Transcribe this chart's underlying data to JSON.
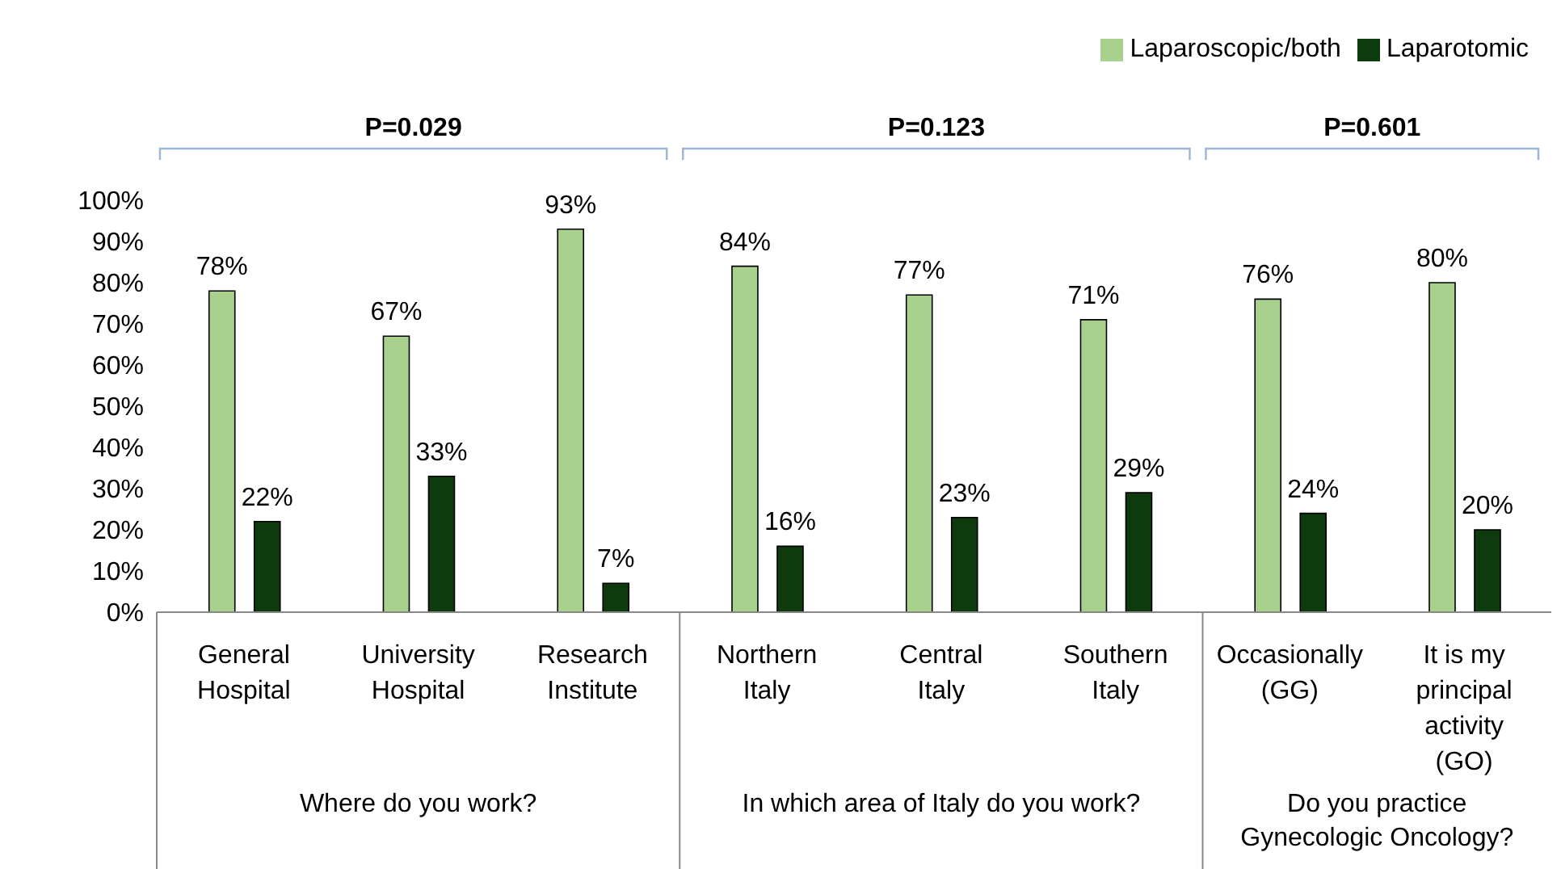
{
  "chart_data": {
    "type": "bar",
    "categories": [
      "General Hospital",
      "University Hospital",
      "Research Institute",
      "Northern Italy",
      "Central Italy",
      "Southern Italy",
      "Occasionally (GG)",
      "It is my principal activity (GO)"
    ],
    "series": [
      {
        "name": "Laparoscopic/both",
        "color": "#a9d18e",
        "values": [
          78,
          67,
          93,
          84,
          77,
          71,
          76,
          80
        ],
        "value_labels": [
          "78%",
          "67%",
          "93%",
          "84%",
          "77%",
          "71%",
          "76%",
          "80%"
        ]
      },
      {
        "name": "Laparotomic",
        "color": "#0d3b0d",
        "values": [
          22,
          33,
          7,
          16,
          23,
          29,
          24,
          20
        ],
        "value_labels": [
          "22%",
          "33%",
          "7%",
          "16%",
          "23%",
          "29%",
          "24%",
          "20%"
        ]
      }
    ],
    "ylim": [
      0,
      100
    ],
    "yticks": [
      {
        "value": 0,
        "label": "0%"
      },
      {
        "value": 10,
        "label": "10%"
      },
      {
        "value": 20,
        "label": "20%"
      },
      {
        "value": 30,
        "label": "30%"
      },
      {
        "value": 40,
        "label": "40%"
      },
      {
        "value": 50,
        "label": "50%"
      },
      {
        "value": 60,
        "label": "60%"
      },
      {
        "value": 70,
        "label": "70%"
      },
      {
        "value": 80,
        "label": "80%"
      },
      {
        "value": 90,
        "label": "90%"
      },
      {
        "value": 100,
        "label": "100%"
      }
    ],
    "legend": "top right",
    "annotations": [
      "P=0.029",
      "P=0.123",
      "P=0.601",
      "Where do you work?",
      "In which area of Italy do you work?",
      "Do you practice Gynecologic Oncology?"
    ]
  }
}
